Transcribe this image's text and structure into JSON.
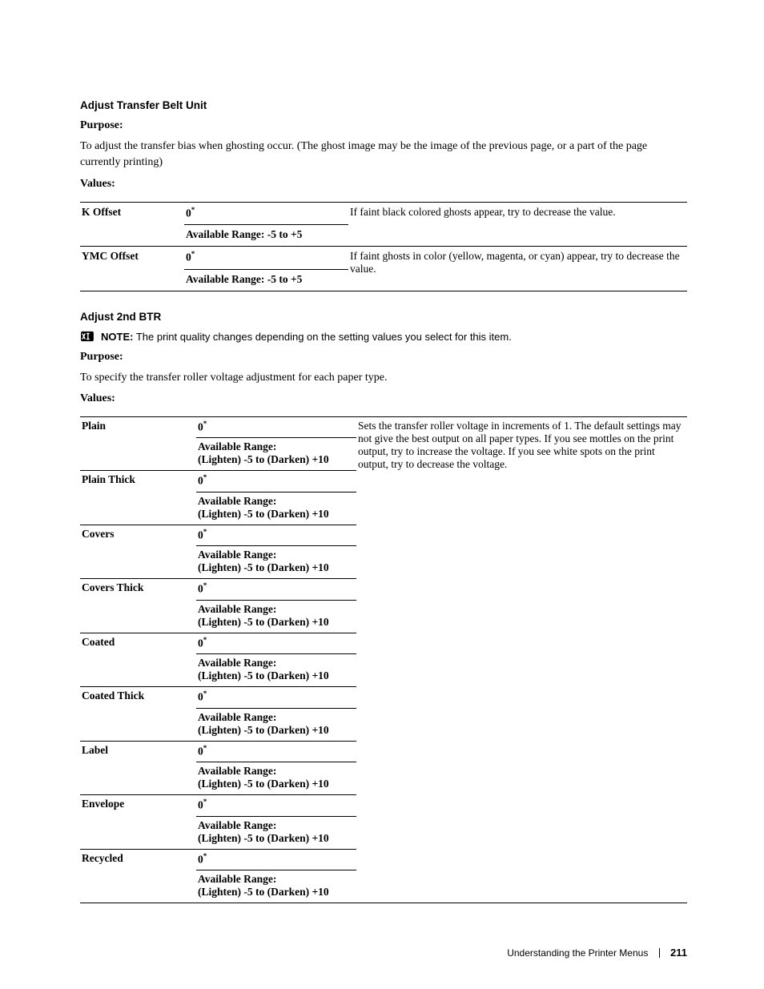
{
  "section1": {
    "heading": "Adjust Transfer Belt Unit",
    "purpose_label": "Purpose:",
    "purpose_text": "To adjust the transfer bias when ghosting occur. (The ghost image may be the image of the previous page, or a part of the page currently printing)",
    "values_label": "Values:",
    "rows": [
      {
        "name": "K Offset",
        "default": "0",
        "range": "Available Range:  -5 to  +5",
        "desc": "If faint black colored ghosts appear, try to decrease the value."
      },
      {
        "name": "YMC Offset",
        "default": "0",
        "range": "Available Range:  -5 to  +5",
        "desc": "If faint ghosts in color (yellow, magenta, or cyan) appear, try to decrease the value."
      }
    ]
  },
  "section2": {
    "heading": "Adjust 2nd BTR",
    "note_label": "NOTE:",
    "note_text": " The print quality changes depending on the setting values you select for this item.",
    "purpose_label": "Purpose:",
    "purpose_text": "To specify the transfer roller voltage adjustment for each paper type.",
    "values_label": "Values:",
    "desc": "Sets the transfer roller voltage in increments of 1. The default settings may not give the best output on all paper types. If you see mottles on the print output, try to increase the voltage. If you see white spots on the print output, try to decrease the voltage.",
    "default": "0",
    "range_line1": "Available Range:",
    "range_line2": "(Lighten) -5 to (Darken) +10",
    "paper_types": [
      "Plain",
      "Plain Thick",
      "Covers",
      "Covers Thick",
      "Coated",
      "Coated Thick",
      "Label",
      "Envelope",
      "Recycled"
    ]
  },
  "footer": {
    "chapter": "Understanding the Printer Menus",
    "page": "211"
  },
  "colors": {
    "text": "#000000",
    "bg": "#ffffff",
    "rule_thick": "#000000",
    "rule_thin": "#000000"
  }
}
